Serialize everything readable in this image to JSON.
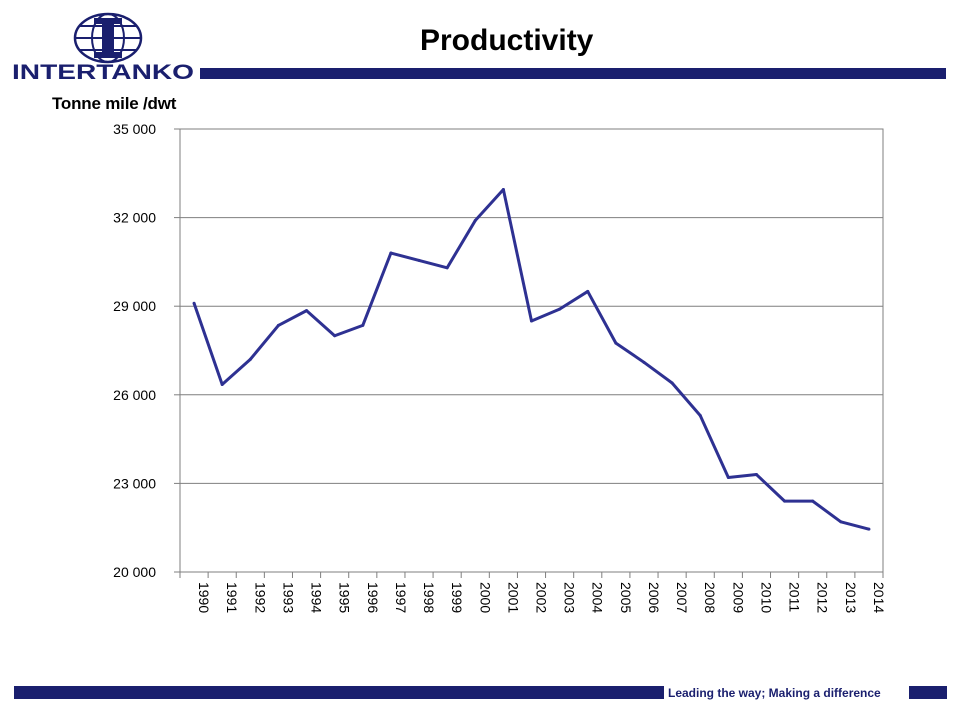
{
  "logo": {
    "text": "INTERTANKO"
  },
  "title": "Productivity",
  "footer": {
    "text": "Leading the way; Making a difference"
  },
  "colors": {
    "brand": "#1a1f6e",
    "line": "#2e3192",
    "grid": "#7f7f7f"
  },
  "chart_data": {
    "type": "line",
    "title": "Productivity",
    "ylabel": "Tonne mile /dwt",
    "xlabel": "",
    "ylim": [
      20000,
      35000
    ],
    "yticks": [
      20000,
      23000,
      26000,
      29000,
      32000,
      35000
    ],
    "ytick_labels": [
      "20 000",
      "23 000",
      "26 000",
      "29 000",
      "32 000",
      "35 000"
    ],
    "grid": "horizontal",
    "categories": [
      "1990",
      "1991",
      "1992",
      "1993",
      "1994",
      "1995",
      "1996",
      "1997",
      "1998",
      "1999",
      "2000",
      "2001",
      "2002",
      "2003",
      "2004",
      "2005",
      "2006",
      "2007",
      "2008",
      "2009",
      "2010",
      "2011",
      "2012",
      "2013",
      "2014"
    ],
    "series": [
      {
        "values": [
          29100,
          26350,
          27200,
          28350,
          28850,
          28000,
          28350,
          30800,
          30550,
          30300,
          31900,
          32950,
          28500,
          28900,
          29500,
          27750,
          27100,
          26400,
          25300,
          23200,
          23300,
          22400,
          22400,
          21700,
          21450
        ]
      }
    ]
  }
}
